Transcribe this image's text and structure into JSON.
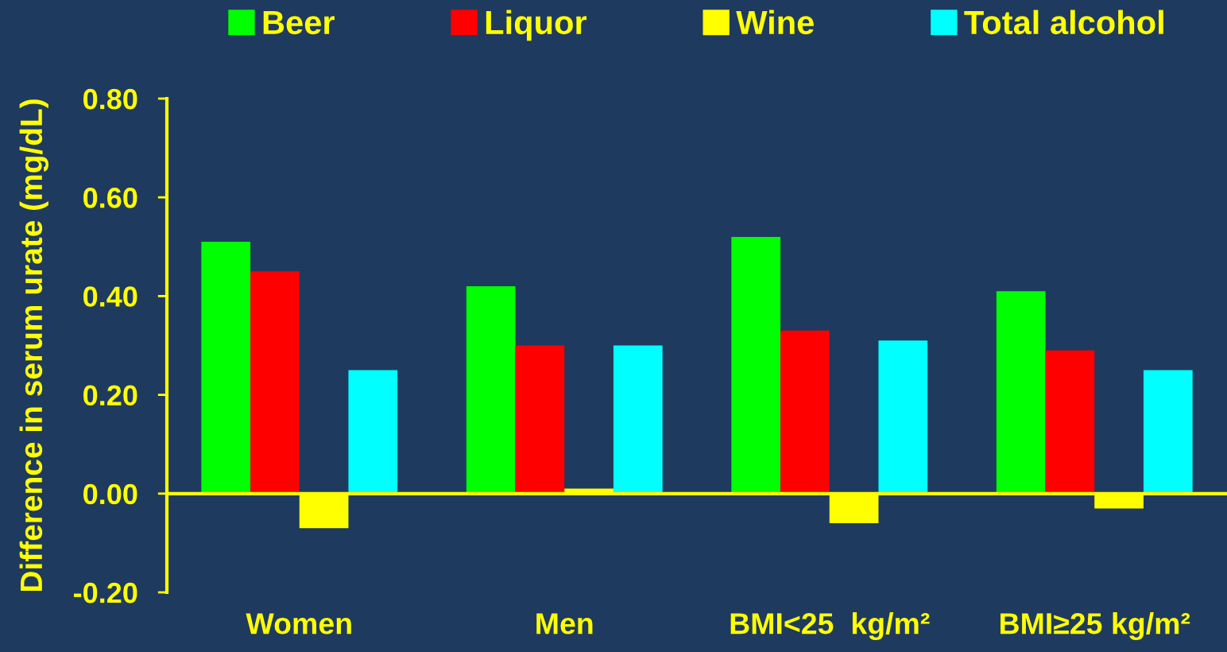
{
  "chart_data": {
    "type": "bar",
    "ylabel": "Difference in serum urate (mg/dL)",
    "categories": [
      "Women",
      "Men",
      "BMI<25  kg/m²",
      "BMI≥25 kg/m²"
    ],
    "series": [
      {
        "name": "Beer",
        "color": "#00ff00",
        "values": [
          0.51,
          0.42,
          0.52,
          0.41
        ]
      },
      {
        "name": "Liquor",
        "color": "#ff0000",
        "values": [
          0.45,
          0.3,
          0.33,
          0.29
        ]
      },
      {
        "name": "Wine",
        "color": "#ffff00",
        "values": [
          -0.07,
          0.01,
          -0.06,
          -0.03
        ]
      },
      {
        "name": "Total alcohol",
        "color": "#00ffff",
        "values": [
          0.25,
          0.3,
          0.31,
          0.25
        ]
      }
    ],
    "ylim": [
      -0.2,
      0.8
    ],
    "yticks": [
      {
        "value": -0.2,
        "label": "-0.20"
      },
      {
        "value": 0.0,
        "label": "0.00"
      },
      {
        "value": 0.2,
        "label": "0.20"
      },
      {
        "value": 0.4,
        "label": "0.40"
      },
      {
        "value": 0.6,
        "label": "0.60"
      },
      {
        "value": 0.8,
        "label": "0.80"
      }
    ],
    "ref_lines": [
      {
        "axis": "y",
        "value": 0.0,
        "color": "#ffff00"
      }
    ],
    "grid": false,
    "legend": "top"
  }
}
